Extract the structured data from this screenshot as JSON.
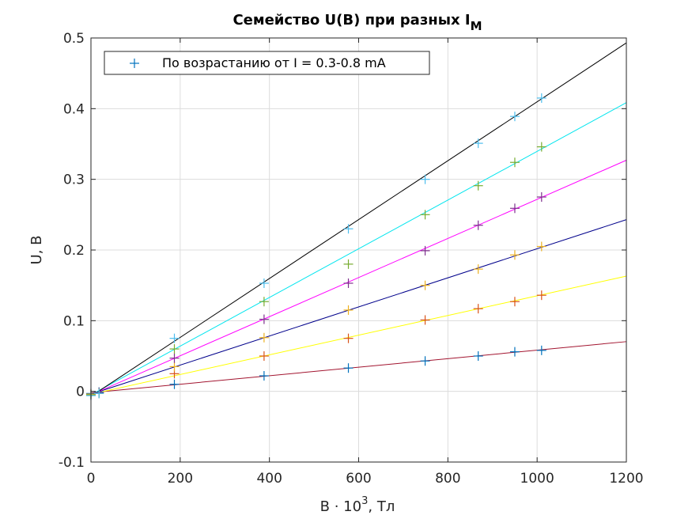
{
  "chart_data": {
    "type": "scatter",
    "title": "Семейство U(B) при разных I",
    "title_subscript": "M",
    "xlabel_main": "B · 10",
    "xlabel_sup": "3",
    "xlabel_tail": ", Тл",
    "ylabel": "U, B",
    "xlim": [
      0,
      1200
    ],
    "ylim": [
      -0.1,
      0.5
    ],
    "xticks": [
      0,
      200,
      400,
      600,
      800,
      1000,
      1200
    ],
    "yticks": [
      -0.1,
      0,
      0.1,
      0.2,
      0.3,
      0.4,
      0.5
    ],
    "xtick_labels": [
      "0",
      "200",
      "400",
      "600",
      "800",
      "1000",
      "1200"
    ],
    "ytick_labels": [
      "-0.1",
      "0",
      "0.1",
      "0.2",
      "0.3",
      "0.4",
      "0.5"
    ],
    "grid": true,
    "legend": {
      "position": "top-left",
      "label": "По возрастанию от I = 0.3-0.8 mA",
      "marker_color": "#0072bd"
    },
    "series": [
      {
        "marker_color": "#0072bd",
        "fit_color": "#a2142f",
        "fit": [
          -0.002,
          6.03e-05
        ],
        "x": [
          0,
          18,
          187,
          388,
          577,
          749,
          868,
          950,
          1010
        ],
        "y": [
          -0.003,
          -0.001,
          0.01,
          0.022,
          0.033,
          0.043,
          0.05,
          0.056,
          0.058
        ]
      },
      {
        "marker_color": "#d95319",
        "fit_color": "#ffff00",
        "fit": [
          -0.004,
          0.0001392
        ],
        "x": [
          0,
          18,
          187,
          388,
          577,
          749,
          868,
          950,
          1010
        ],
        "y": [
          -0.004,
          -0.002,
          0.025,
          0.05,
          0.075,
          0.101,
          0.117,
          0.127,
          0.136
        ]
      },
      {
        "marker_color": "#edb120",
        "fit_color": "#00008b",
        "fit": [
          -0.004,
          0.0002058
        ],
        "x": [
          0,
          18,
          187,
          388,
          577,
          749,
          868,
          950,
          1010
        ],
        "y": [
          -0.004,
          -0.002,
          0.035,
          0.076,
          0.115,
          0.15,
          0.173,
          0.193,
          0.205
        ]
      },
      {
        "marker_color": "#7e2f8e",
        "fit_color": "#ff00ff",
        "fit": [
          -0.005,
          0.0002767
        ],
        "x": [
          0,
          18,
          187,
          388,
          577,
          749,
          868,
          950,
          1010
        ],
        "y": [
          -0.005,
          -0.002,
          0.047,
          0.102,
          0.153,
          0.199,
          0.235,
          0.259,
          0.275
        ]
      },
      {
        "marker_color": "#77ac30",
        "fit_color": "#00e5ee",
        "fit": [
          -0.005,
          0.0003446
        ],
        "x": [
          0,
          18,
          187,
          388,
          577,
          749,
          868,
          950,
          1010
        ],
        "y": [
          -0.005,
          -0.003,
          0.06,
          0.127,
          0.18,
          0.25,
          0.291,
          0.324,
          0.346
        ]
      },
      {
        "marker_color": "#4dbeee",
        "fit_color": "#000000",
        "fit": [
          -0.007,
          0.0004167
        ],
        "x": [
          0,
          18,
          187,
          388,
          577,
          749,
          868,
          950,
          1010
        ],
        "y": [
          -0.006,
          -0.003,
          0.075,
          0.153,
          0.23,
          0.3,
          0.351,
          0.389,
          0.415
        ]
      }
    ]
  }
}
